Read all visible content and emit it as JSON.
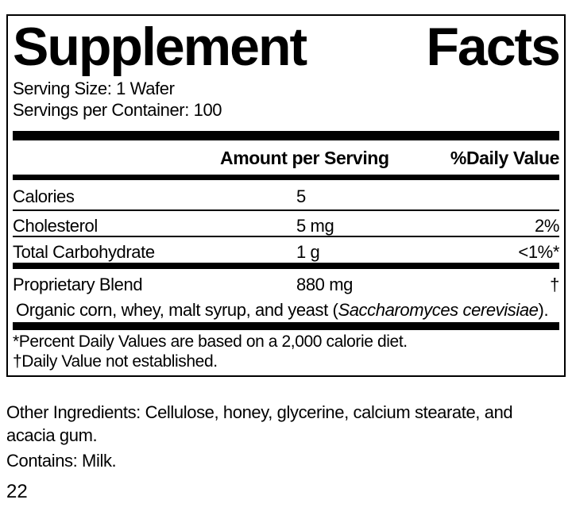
{
  "colors": {
    "text": "#000000",
    "background": "#ffffff",
    "bar": "#000000"
  },
  "label": {
    "title_word1": "Supplement",
    "title_word2": "Facts",
    "serving_size": "Serving Size: 1 Wafer",
    "servings_per_container": "Servings per Container: 100",
    "header": {
      "amount": "Amount per Serving",
      "daily_value": "%Daily Value"
    },
    "rows": [
      {
        "name": "Calories",
        "amount": "5",
        "daily_value": ""
      },
      {
        "name": "Cholesterol",
        "amount": "5 mg",
        "daily_value": "2%"
      },
      {
        "name": "Total Carbohydrate",
        "amount": "1 g",
        "daily_value": "<1%*"
      }
    ],
    "blend": {
      "name": "Proprietary Blend",
      "amount": "880 mg",
      "daily_value": "†",
      "sub_prefix": "Organic corn, whey, malt syrup, and yeast (",
      "sub_italic": "Saccharomyces cerevisiae",
      "sub_suffix": ")."
    },
    "footnotes": [
      "*Percent Daily Values are based on a 2,000 calorie diet.",
      "†Daily Value not established."
    ]
  },
  "below_label": {
    "other_ingredients": "Other Ingredients: Cellulose, honey, glycerine, calcium stearate, and acacia gum.",
    "contains": "Contains: Milk.",
    "page_number": "22"
  }
}
